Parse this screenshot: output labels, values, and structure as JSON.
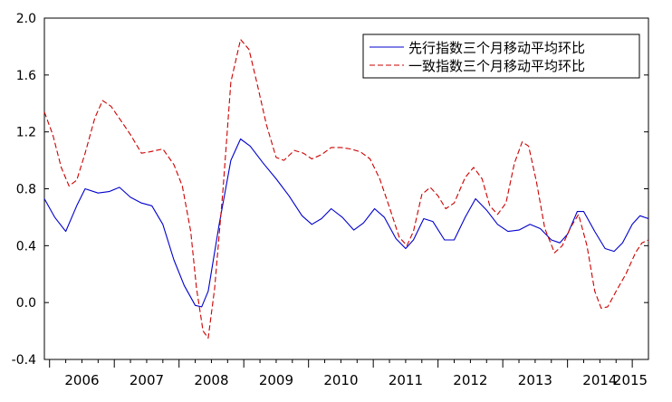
{
  "chart_data": {
    "type": "line",
    "title": "",
    "xlabel": "",
    "ylabel": "",
    "ylim": [
      -0.4,
      2.0
    ],
    "yticks": [
      "2.0",
      "1.6",
      "1.2",
      "0.8",
      "0.4",
      "0.0",
      "-0.4"
    ],
    "year_labels": [
      "2006",
      "2007",
      "2008",
      "2009",
      "2010",
      "2011",
      "2012",
      "2013",
      "2014",
      "2015"
    ],
    "x_range": [
      2005.92,
      2015.25
    ],
    "grid": false,
    "legend_position": "top-right",
    "series": [
      {
        "name": "先行指数三个月移动平均环比",
        "color": "#0000cc",
        "dash": "solid",
        "points": [
          [
            2005.92,
            0.73
          ],
          [
            2006.08,
            0.6
          ],
          [
            2006.25,
            0.5
          ],
          [
            2006.42,
            0.68
          ],
          [
            2006.55,
            0.8
          ],
          [
            2006.75,
            0.77
          ],
          [
            2006.92,
            0.78
          ],
          [
            2007.08,
            0.81
          ],
          [
            2007.25,
            0.74
          ],
          [
            2007.42,
            0.7
          ],
          [
            2007.58,
            0.68
          ],
          [
            2007.75,
            0.55
          ],
          [
            2007.92,
            0.3
          ],
          [
            2008.08,
            0.12
          ],
          [
            2008.25,
            -0.02
          ],
          [
            2008.35,
            -0.03
          ],
          [
            2008.45,
            0.08
          ],
          [
            2008.62,
            0.55
          ],
          [
            2008.8,
            1.0
          ],
          [
            2008.95,
            1.15
          ],
          [
            2009.1,
            1.1
          ],
          [
            2009.3,
            0.98
          ],
          [
            2009.5,
            0.87
          ],
          [
            2009.7,
            0.75
          ],
          [
            2009.9,
            0.61
          ],
          [
            2010.05,
            0.55
          ],
          [
            2010.2,
            0.59
          ],
          [
            2010.35,
            0.66
          ],
          [
            2010.52,
            0.6
          ],
          [
            2010.7,
            0.51
          ],
          [
            2010.85,
            0.56
          ],
          [
            2011.02,
            0.66
          ],
          [
            2011.17,
            0.6
          ],
          [
            2011.35,
            0.45
          ],
          [
            2011.5,
            0.38
          ],
          [
            2011.62,
            0.44
          ],
          [
            2011.78,
            0.59
          ],
          [
            2011.92,
            0.57
          ],
          [
            2012.1,
            0.44
          ],
          [
            2012.25,
            0.44
          ],
          [
            2012.42,
            0.6
          ],
          [
            2012.58,
            0.73
          ],
          [
            2012.75,
            0.65
          ],
          [
            2012.92,
            0.55
          ],
          [
            2013.08,
            0.5
          ],
          [
            2013.25,
            0.51
          ],
          [
            2013.42,
            0.55
          ],
          [
            2013.58,
            0.52
          ],
          [
            2013.75,
            0.44
          ],
          [
            2013.88,
            0.42
          ],
          [
            2014.0,
            0.48
          ],
          [
            2014.15,
            0.64
          ],
          [
            2014.25,
            0.64
          ],
          [
            2014.42,
            0.5
          ],
          [
            2014.58,
            0.38
          ],
          [
            2014.72,
            0.36
          ],
          [
            2014.85,
            0.42
          ],
          [
            2015.0,
            0.55
          ],
          [
            2015.12,
            0.61
          ],
          [
            2015.25,
            0.59
          ]
        ]
      },
      {
        "name": "一致指数三个月移动平均环比",
        "color": "#cc0000",
        "dash": "dashed",
        "points": [
          [
            2005.92,
            1.34
          ],
          [
            2006.05,
            1.18
          ],
          [
            2006.18,
            0.95
          ],
          [
            2006.3,
            0.82
          ],
          [
            2006.42,
            0.86
          ],
          [
            2006.55,
            1.05
          ],
          [
            2006.7,
            1.3
          ],
          [
            2006.82,
            1.42
          ],
          [
            2006.95,
            1.38
          ],
          [
            2007.1,
            1.28
          ],
          [
            2007.25,
            1.18
          ],
          [
            2007.42,
            1.05
          ],
          [
            2007.55,
            1.06
          ],
          [
            2007.75,
            1.08
          ],
          [
            2007.92,
            0.97
          ],
          [
            2008.05,
            0.82
          ],
          [
            2008.18,
            0.5
          ],
          [
            2008.27,
            0.1
          ],
          [
            2008.37,
            -0.2
          ],
          [
            2008.45,
            -0.25
          ],
          [
            2008.55,
            0.1
          ],
          [
            2008.68,
            0.8
          ],
          [
            2008.8,
            1.55
          ],
          [
            2008.95,
            1.85
          ],
          [
            2009.08,
            1.78
          ],
          [
            2009.2,
            1.55
          ],
          [
            2009.35,
            1.25
          ],
          [
            2009.5,
            1.02
          ],
          [
            2009.62,
            1.0
          ],
          [
            2009.78,
            1.07
          ],
          [
            2009.92,
            1.05
          ],
          [
            2010.05,
            1.01
          ],
          [
            2010.2,
            1.04
          ],
          [
            2010.35,
            1.09
          ],
          [
            2010.5,
            1.09
          ],
          [
            2010.65,
            1.08
          ],
          [
            2010.8,
            1.06
          ],
          [
            2010.95,
            1.01
          ],
          [
            2011.1,
            0.87
          ],
          [
            2011.25,
            0.67
          ],
          [
            2011.4,
            0.46
          ],
          [
            2011.52,
            0.4
          ],
          [
            2011.62,
            0.5
          ],
          [
            2011.75,
            0.76
          ],
          [
            2011.88,
            0.81
          ],
          [
            2012.0,
            0.75
          ],
          [
            2012.12,
            0.66
          ],
          [
            2012.25,
            0.7
          ],
          [
            2012.42,
            0.88
          ],
          [
            2012.55,
            0.95
          ],
          [
            2012.68,
            0.87
          ],
          [
            2012.8,
            0.68
          ],
          [
            2012.92,
            0.62
          ],
          [
            2013.05,
            0.7
          ],
          [
            2013.18,
            0.98
          ],
          [
            2013.3,
            1.13
          ],
          [
            2013.4,
            1.1
          ],
          [
            2013.52,
            0.85
          ],
          [
            2013.65,
            0.52
          ],
          [
            2013.8,
            0.35
          ],
          [
            2013.92,
            0.4
          ],
          [
            2014.05,
            0.53
          ],
          [
            2014.17,
            0.62
          ],
          [
            2014.3,
            0.4
          ],
          [
            2014.42,
            0.08
          ],
          [
            2014.52,
            -0.04
          ],
          [
            2014.62,
            -0.03
          ],
          [
            2014.75,
            0.08
          ],
          [
            2014.9,
            0.2
          ],
          [
            2015.05,
            0.35
          ],
          [
            2015.15,
            0.42
          ],
          [
            2015.25,
            0.44
          ]
        ]
      }
    ]
  }
}
